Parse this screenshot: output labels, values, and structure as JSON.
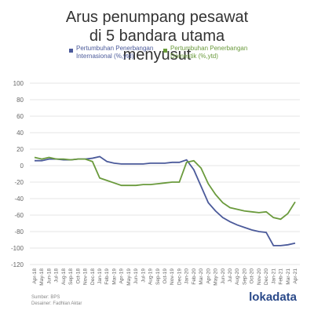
{
  "chart_data": {
    "type": "line",
    "title": "Arus penumpang pesawat di 5 bandara utama menyusut",
    "categories": [
      "Apr-18",
      "May-18",
      "Jun-18",
      "Jul-18",
      "Aug-18",
      "Sep-18",
      "Oct-18",
      "Nov-18",
      "Dec-18",
      "Jan-19",
      "Feb-19",
      "Mar-19",
      "Apr-19",
      "May-19",
      "Jun-19",
      "Jul-19",
      "Aug-19",
      "Sep-19",
      "Oct-19",
      "Nov-19",
      "Dec-19",
      "Jan-20",
      "Feb-20",
      "Mar-20",
      "Apr-20",
      "May-20",
      "Jun-20",
      "Jul-20",
      "Aug-20",
      "Sep-20",
      "Oct-20",
      "Nov-20",
      "Dec-20",
      "Jan-21",
      "Feb-21",
      "Mar-21",
      "Apr-21"
    ],
    "series": [
      {
        "name": "Pertumbuhan Penerbangan Internasional (%,ytd)",
        "color": "#4b5a9a",
        "values": [
          6,
          6,
          8,
          8,
          7,
          7,
          8,
          8,
          9,
          11,
          5,
          3,
          2,
          2,
          2,
          2,
          3,
          3,
          3,
          4,
          4,
          7,
          -5,
          -25,
          -45,
          -55,
          -63,
          -68,
          -72,
          -75,
          -78,
          -80,
          -81,
          -97,
          -97,
          -96,
          -94
        ]
      },
      {
        "name": "Pertumbuhan Penerbangan Domestik (%,ytd)",
        "color": "#6a9a3c",
        "values": [
          10,
          8,
          10,
          8,
          8,
          7,
          8,
          8,
          5,
          -15,
          -18,
          -21,
          -24,
          -24,
          -24,
          -23,
          -23,
          -22,
          -21,
          -20,
          -20,
          4,
          6,
          -3,
          -22,
          -35,
          -45,
          -51,
          -53,
          -55,
          -56,
          -57,
          -56,
          -63,
          -65,
          -58,
          -44
        ]
      }
    ],
    "ylim": [
      -120,
      100
    ],
    "yticks": [
      -120,
      -100,
      -80,
      -60,
      -40,
      -20,
      0,
      20,
      40,
      60,
      80,
      100
    ],
    "grid": true,
    "source": "Sumber: BPS",
    "designer": "Desainer: Fadhlan Aktar",
    "logo": "lokadata"
  }
}
